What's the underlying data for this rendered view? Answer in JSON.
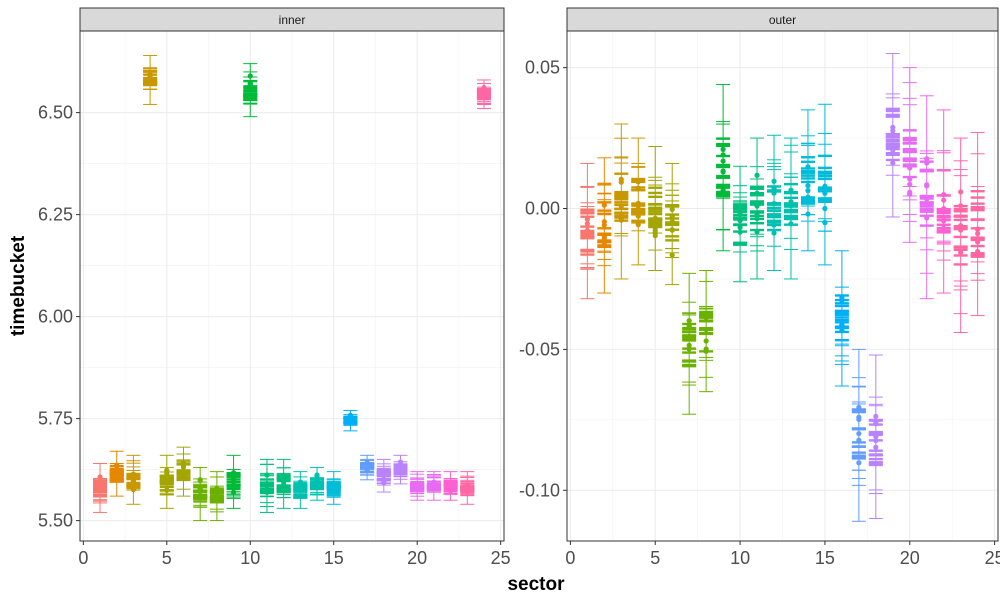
{
  "chart_data": {
    "type": "errorbar",
    "facet_by": "sector_group",
    "xlabel": "sector",
    "ylabel": "timebucket",
    "grid": true,
    "legend": "none",
    "colors": [
      "#F8766D",
      "#E58700",
      "#C99800",
      "#A3A500",
      "#6BB100",
      "#00BA38",
      "#00BF7D",
      "#00C0AF",
      "#00BCD8",
      "#00B0F6",
      "#619CFF",
      "#B983FF",
      "#E76BF3",
      "#FD61D1",
      "#FF67A4"
    ],
    "panels": [
      {
        "title": "inner",
        "xlim": [
          -0.2,
          25.2
        ],
        "ylim": [
          5.45,
          6.7
        ],
        "xticks": [
          0,
          5,
          10,
          15,
          20,
          25
        ],
        "yticks": [
          5.5,
          5.75,
          6.0,
          6.25,
          6.5
        ],
        "ytick_labels": [
          "5.50",
          "5.75",
          "6.00",
          "6.25",
          "6.50"
        ],
        "points": [
          {
            "x": 1,
            "y": 5.58,
            "lo": 5.52,
            "hi": 5.64,
            "color": "#F8766D"
          },
          {
            "x": 2,
            "y": 5.62,
            "lo": 5.56,
            "hi": 5.67,
            "color": "#E58700"
          },
          {
            "x": 3,
            "y": 5.6,
            "lo": 5.54,
            "hi": 5.66,
            "color": "#C99800"
          },
          {
            "x": 4,
            "y": 6.58,
            "lo": 6.52,
            "hi": 6.64,
            "color": "#C99800"
          },
          {
            "x": 5,
            "y": 5.6,
            "lo": 5.53,
            "hi": 5.66,
            "color": "#A3A500"
          },
          {
            "x": 6,
            "y": 5.62,
            "lo": 5.56,
            "hi": 5.68,
            "color": "#A3A500"
          },
          {
            "x": 7,
            "y": 5.57,
            "lo": 5.5,
            "hi": 5.63,
            "color": "#6BB100"
          },
          {
            "x": 8,
            "y": 5.56,
            "lo": 5.5,
            "hi": 5.62,
            "color": "#6BB100"
          },
          {
            "x": 9,
            "y": 5.6,
            "lo": 5.53,
            "hi": 5.66,
            "color": "#00BA38"
          },
          {
            "x": 10,
            "y": 6.56,
            "lo": 6.49,
            "hi": 6.62,
            "color": "#00BA38"
          },
          {
            "x": 11,
            "y": 5.59,
            "lo": 5.52,
            "hi": 5.65,
            "color": "#00BF7D"
          },
          {
            "x": 12,
            "y": 5.59,
            "lo": 5.53,
            "hi": 5.65,
            "color": "#00BF7D"
          },
          {
            "x": 13,
            "y": 5.58,
            "lo": 5.53,
            "hi": 5.62,
            "color": "#00C0AF"
          },
          {
            "x": 14,
            "y": 5.6,
            "lo": 5.55,
            "hi": 5.63,
            "color": "#00C0AF"
          },
          {
            "x": 15,
            "y": 5.58,
            "lo": 5.54,
            "hi": 5.62,
            "color": "#00BCD8"
          },
          {
            "x": 16,
            "y": 5.75,
            "lo": 5.72,
            "hi": 5.77,
            "color": "#00B0F6"
          },
          {
            "x": 17,
            "y": 5.63,
            "lo": 5.6,
            "hi": 5.66,
            "color": "#619CFF"
          },
          {
            "x": 18,
            "y": 5.61,
            "lo": 5.57,
            "hi": 5.65,
            "color": "#B983FF"
          },
          {
            "x": 19,
            "y": 5.63,
            "lo": 5.59,
            "hi": 5.66,
            "color": "#B983FF"
          },
          {
            "x": 20,
            "y": 5.59,
            "lo": 5.55,
            "hi": 5.62,
            "color": "#E76BF3"
          },
          {
            "x": 21,
            "y": 5.59,
            "lo": 5.55,
            "hi": 5.62,
            "color": "#E76BF3"
          },
          {
            "x": 22,
            "y": 5.58,
            "lo": 5.55,
            "hi": 5.62,
            "color": "#FD61D1"
          },
          {
            "x": 23,
            "y": 5.58,
            "lo": 5.54,
            "hi": 5.62,
            "color": "#FF67A4"
          },
          {
            "x": 24,
            "y": 6.55,
            "lo": 6.51,
            "hi": 6.58,
            "color": "#FF67A4"
          }
        ]
      },
      {
        "title": "outer",
        "xlim": [
          -0.2,
          25.2
        ],
        "ylim": [
          -0.118,
          0.063
        ],
        "xticks": [
          0,
          5,
          10,
          15,
          20,
          25
        ],
        "yticks": [
          -0.1,
          -0.05,
          0.0,
          0.05
        ],
        "ytick_labels": [
          "-0.10",
          "-0.05",
          "0.00",
          "0.05"
        ],
        "points": [
          {
            "x": 1,
            "y": -0.01,
            "lo": -0.032,
            "hi": 0.016,
            "color": "#F8766D"
          },
          {
            "x": 2,
            "y": -0.005,
            "lo": -0.03,
            "hi": 0.018,
            "color": "#E58700"
          },
          {
            "x": 3,
            "y": 0.003,
            "lo": -0.025,
            "hi": 0.03,
            "color": "#C99800"
          },
          {
            "x": 4,
            "y": 0.002,
            "lo": -0.02,
            "hi": 0.025,
            "color": "#C99800"
          },
          {
            "x": 5,
            "y": -0.005,
            "lo": -0.022,
            "hi": 0.022,
            "color": "#A3A500"
          },
          {
            "x": 6,
            "y": -0.007,
            "lo": -0.027,
            "hi": 0.016,
            "color": "#A3A500"
          },
          {
            "x": 7,
            "y": -0.045,
            "lo": -0.073,
            "hi": -0.023,
            "color": "#6BB100"
          },
          {
            "x": 8,
            "y": -0.045,
            "lo": -0.065,
            "hi": -0.022,
            "color": "#6BB100"
          },
          {
            "x": 9,
            "y": 0.01,
            "lo": -0.015,
            "hi": 0.044,
            "color": "#00BA38"
          },
          {
            "x": 10,
            "y": -0.003,
            "lo": -0.026,
            "hi": 0.015,
            "color": "#00BF7D"
          },
          {
            "x": 11,
            "y": 0.0,
            "lo": -0.025,
            "hi": 0.025,
            "color": "#00BF7D"
          },
          {
            "x": 12,
            "y": 0.002,
            "lo": -0.022,
            "hi": 0.026,
            "color": "#00C0AF"
          },
          {
            "x": 13,
            "y": 0.005,
            "lo": -0.025,
            "hi": 0.025,
            "color": "#00C0AF"
          },
          {
            "x": 14,
            "y": 0.005,
            "lo": -0.015,
            "hi": 0.035,
            "color": "#00BCD8"
          },
          {
            "x": 15,
            "y": 0.005,
            "lo": -0.02,
            "hi": 0.037,
            "color": "#00BCD8"
          },
          {
            "x": 16,
            "y": -0.04,
            "lo": -0.063,
            "hi": -0.015,
            "color": "#00B0F6"
          },
          {
            "x": 17,
            "y": -0.08,
            "lo": -0.111,
            "hi": -0.05,
            "color": "#619CFF"
          },
          {
            "x": 18,
            "y": -0.075,
            "lo": -0.11,
            "hi": -0.052,
            "color": "#B983FF"
          },
          {
            "x": 19,
            "y": 0.02,
            "lo": -0.003,
            "hi": 0.055,
            "color": "#B983FF"
          },
          {
            "x": 20,
            "y": 0.015,
            "lo": -0.012,
            "hi": 0.05,
            "color": "#E76BF3"
          },
          {
            "x": 21,
            "y": 0.005,
            "lo": -0.032,
            "hi": 0.04,
            "color": "#E76BF3"
          },
          {
            "x": 22,
            "y": 0.005,
            "lo": -0.03,
            "hi": 0.035,
            "color": "#FD61D1"
          },
          {
            "x": 23,
            "y": -0.01,
            "lo": -0.044,
            "hi": 0.025,
            "color": "#FF67A4"
          },
          {
            "x": 24,
            "y": -0.01,
            "lo": -0.038,
            "hi": 0.027,
            "color": "#FF67A4"
          }
        ]
      }
    ]
  }
}
